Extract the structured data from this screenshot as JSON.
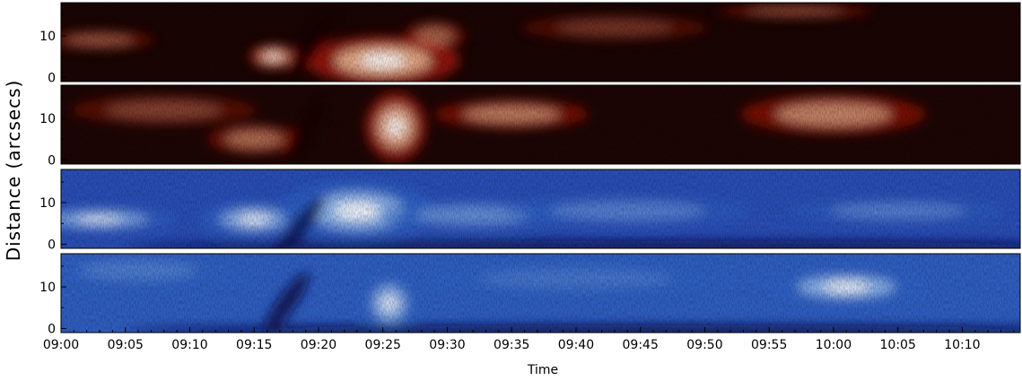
{
  "chart_data": {
    "type": "heatmap",
    "ylabel": "Distance (arcsecs)",
    "xlabel": "Time",
    "x_range_minutes_after_0900": [
      0,
      74.5
    ],
    "x_ticks": [
      "09:00",
      "09:05",
      "09:10",
      "09:15",
      "09:20",
      "09:25",
      "09:30",
      "09:35",
      "09:40",
      "09:45",
      "09:50",
      "09:55",
      "10:00",
      "10:05",
      "10:10"
    ],
    "y_range_arcsec": [
      -1,
      18
    ],
    "y_ticks": [
      "0",
      "10"
    ],
    "panels": [
      {
        "colormap": "red",
        "background": "#1a0503",
        "features": [
          {
            "kind": "blob",
            "t": 25,
            "d": 4,
            "rt": 5,
            "rd": 5,
            "intensity": 1.0
          },
          {
            "kind": "blob",
            "t": 16.5,
            "d": 5,
            "rt": 1.6,
            "rd": 2.5,
            "intensity": 0.9
          },
          {
            "kind": "blob",
            "t": 29,
            "d": 10,
            "rt": 2.0,
            "rd": 3.0,
            "intensity": 0.55
          },
          {
            "kind": "blob",
            "t": 3,
            "d": 9,
            "rt": 3.5,
            "rd": 2.0,
            "intensity": 0.45
          },
          {
            "kind": "blob",
            "t": 57,
            "d": 16,
            "rt": 5.0,
            "rd": 1.5,
            "intensity": 0.4
          },
          {
            "kind": "blob",
            "t": 43,
            "d": 12,
            "rt": 6.0,
            "rd": 2.5,
            "intensity": 0.28
          },
          {
            "kind": "dark_lane",
            "t": 19.5,
            "d": 8,
            "angle_deg": -55,
            "intensity": 0.9
          }
        ]
      },
      {
        "colormap": "red",
        "background": "#1c0604",
        "features": [
          {
            "kind": "blob",
            "t": 15,
            "d": 5,
            "rt": 3.0,
            "rd": 3.0,
            "intensity": 0.6
          },
          {
            "kind": "blob",
            "t": 26,
            "d": 8,
            "rt": 2.0,
            "rd": 7.0,
            "intensity": 0.95
          },
          {
            "kind": "blob",
            "t": 35,
            "d": 11,
            "rt": 5.0,
            "rd": 3.0,
            "intensity": 0.7
          },
          {
            "kind": "blob",
            "t": 60,
            "d": 11,
            "rt": 6.0,
            "rd": 4.0,
            "intensity": 0.75
          },
          {
            "kind": "blob",
            "t": 8,
            "d": 12,
            "rt": 6.0,
            "rd": 3.0,
            "intensity": 0.35
          },
          {
            "kind": "dark_lane",
            "t": 19,
            "d": 7,
            "angle_deg": -60,
            "intensity": 0.9
          }
        ]
      },
      {
        "colormap": "blue",
        "background": "#2a4fb8",
        "features": [
          {
            "kind": "blob",
            "t": 3,
            "d": 6,
            "rt": 5.0,
            "rd": 2.5,
            "intensity": 0.85
          },
          {
            "kind": "blob",
            "t": 15,
            "d": 6,
            "rt": 3.5,
            "rd": 3.5,
            "intensity": 0.9
          },
          {
            "kind": "blob",
            "t": 23,
            "d": 8,
            "rt": 5.0,
            "rd": 6.0,
            "intensity": 1.0
          },
          {
            "kind": "blob",
            "t": 32,
            "d": 7,
            "rt": 6.0,
            "rd": 3.0,
            "intensity": 0.6
          },
          {
            "kind": "blob",
            "t": 44,
            "d": 8,
            "rt": 8.0,
            "rd": 3.0,
            "intensity": 0.45
          },
          {
            "kind": "blob",
            "t": 65,
            "d": 8,
            "rt": 7.0,
            "rd": 2.5,
            "intensity": 0.45
          },
          {
            "kind": "dark_lane",
            "t": 18.5,
            "d": 4,
            "angle_deg": -50,
            "intensity": 0.8
          },
          {
            "kind": "dark_band",
            "t": 45,
            "d": -0.5,
            "rt": 40,
            "rd": 1.0,
            "intensity": 0.9
          }
        ]
      },
      {
        "colormap": "blue",
        "background": "#3060c4",
        "features": [
          {
            "kind": "blob",
            "t": 61,
            "d": 10,
            "rt": 5.0,
            "rd": 3.5,
            "intensity": 1.0
          },
          {
            "kind": "blob",
            "t": 25.5,
            "d": 6,
            "rt": 1.8,
            "rd": 6.0,
            "intensity": 0.85
          },
          {
            "kind": "blob",
            "t": 6,
            "d": 14,
            "rt": 6.0,
            "rd": 3.0,
            "intensity": 0.35
          },
          {
            "kind": "blob",
            "t": 40,
            "d": 12,
            "rt": 10.0,
            "rd": 3.0,
            "intensity": 0.25
          },
          {
            "kind": "dark_lane",
            "t": 17.5,
            "d": 6,
            "angle_deg": -55,
            "intensity": 0.85
          },
          {
            "kind": "dark_band",
            "t": 45,
            "d": -0.5,
            "rt": 40,
            "rd": 1.2,
            "intensity": 0.95
          }
        ]
      }
    ]
  },
  "colors": {
    "red_low": "#140302",
    "red_mid": "#b4180a",
    "red_high": "#ffd9b0",
    "red_peak": "#ffffff",
    "blue_low": "#0a1250",
    "blue_mid": "#2f64c8",
    "blue_high": "#a9cdf5",
    "blue_peak": "#ffffff"
  }
}
